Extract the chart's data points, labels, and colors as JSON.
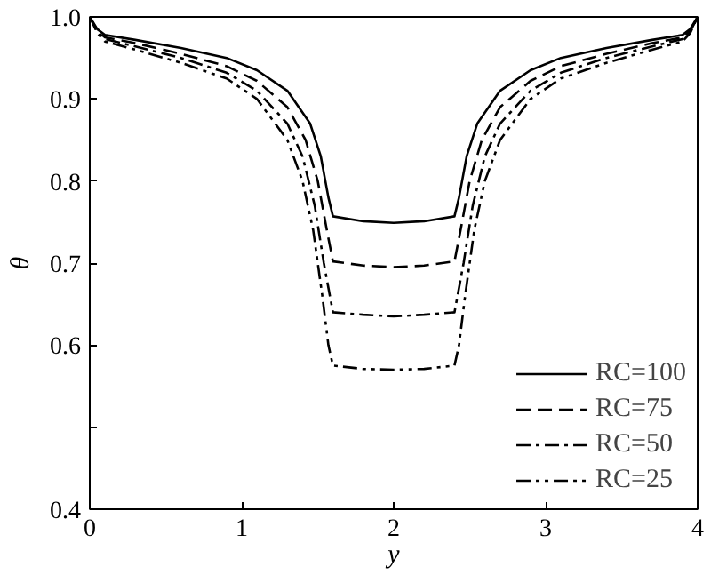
{
  "chart_data": {
    "type": "line",
    "xlabel": "y",
    "ylabel": "θ",
    "xlim": [
      0,
      4
    ],
    "xticks": [
      0,
      1,
      2,
      3,
      4
    ],
    "ylim": [
      0.4,
      1.0
    ],
    "yticks": [
      0.4,
      {
        "value": 0.5,
        "label": null
      },
      0.6,
      0.7,
      0.8,
      0.9,
      {
        "value": 1.0,
        "label": "1.0"
      }
    ],
    "grid": false,
    "legend": "bottom right",
    "series": [
      {
        "name": "RC=100",
        "color": "#000000",
        "line_style": "solid",
        "x": [
          0,
          0.05,
          0.1,
          0.3,
          0.6,
          0.9,
          1.1,
          1.3,
          1.45,
          1.52,
          1.57,
          1.6,
          1.8,
          2.0,
          2.2,
          2.4,
          2.43,
          2.48,
          2.55,
          2.7,
          2.9,
          3.1,
          3.4,
          3.7,
          3.9,
          3.95,
          4
        ],
        "values": [
          1.0,
          0.985,
          0.978,
          0.972,
          0.962,
          0.95,
          0.935,
          0.91,
          0.87,
          0.83,
          0.78,
          0.757,
          0.751,
          0.749,
          0.751,
          0.757,
          0.78,
          0.83,
          0.87,
          0.91,
          0.935,
          0.95,
          0.962,
          0.972,
          0.978,
          0.985,
          1.0
        ]
      },
      {
        "name": "RC=75",
        "color": "#000000",
        "line_style": "dashed",
        "x": [
          0,
          0.05,
          0.1,
          0.3,
          0.6,
          0.9,
          1.1,
          1.3,
          1.42,
          1.5,
          1.56,
          1.6,
          1.8,
          2.0,
          2.2,
          2.4,
          2.44,
          2.5,
          2.58,
          2.7,
          2.9,
          3.1,
          3.4,
          3.7,
          3.9,
          3.95,
          4
        ],
        "values": [
          1.0,
          0.983,
          0.975,
          0.968,
          0.955,
          0.94,
          0.922,
          0.89,
          0.85,
          0.8,
          0.74,
          0.702,
          0.697,
          0.695,
          0.697,
          0.702,
          0.74,
          0.8,
          0.85,
          0.89,
          0.922,
          0.94,
          0.955,
          0.968,
          0.975,
          0.983,
          1.0
        ]
      },
      {
        "name": "RC=50",
        "color": "#000000",
        "line_style": "dashdot",
        "x": [
          0,
          0.05,
          0.1,
          0.3,
          0.6,
          0.9,
          1.1,
          1.3,
          1.4,
          1.48,
          1.54,
          1.58,
          1.6,
          1.8,
          2.0,
          2.2,
          2.4,
          2.42,
          2.46,
          2.52,
          2.6,
          2.7,
          2.9,
          3.1,
          3.4,
          3.7,
          3.9,
          3.95,
          4
        ],
        "values": [
          1.0,
          0.982,
          0.973,
          0.964,
          0.95,
          0.932,
          0.91,
          0.87,
          0.83,
          0.77,
          0.7,
          0.66,
          0.64,
          0.637,
          0.635,
          0.637,
          0.64,
          0.66,
          0.7,
          0.77,
          0.83,
          0.87,
          0.91,
          0.932,
          0.95,
          0.964,
          0.973,
          0.982,
          1.0
        ]
      },
      {
        "name": "RC=25",
        "color": "#000000",
        "line_style": "dashdotdot",
        "x": [
          0,
          0.05,
          0.1,
          0.3,
          0.6,
          0.9,
          1.1,
          1.3,
          1.4,
          1.47,
          1.53,
          1.57,
          1.6,
          1.8,
          2.0,
          2.2,
          2.4,
          2.43,
          2.47,
          2.53,
          2.6,
          2.7,
          2.9,
          3.1,
          3.4,
          3.7,
          3.9,
          3.95,
          4
        ],
        "values": [
          1.0,
          0.98,
          0.97,
          0.96,
          0.944,
          0.925,
          0.9,
          0.85,
          0.8,
          0.74,
          0.66,
          0.6,
          0.575,
          0.571,
          0.57,
          0.571,
          0.575,
          0.6,
          0.66,
          0.74,
          0.8,
          0.85,
          0.9,
          0.925,
          0.944,
          0.96,
          0.97,
          0.98,
          1.0
        ]
      }
    ]
  }
}
